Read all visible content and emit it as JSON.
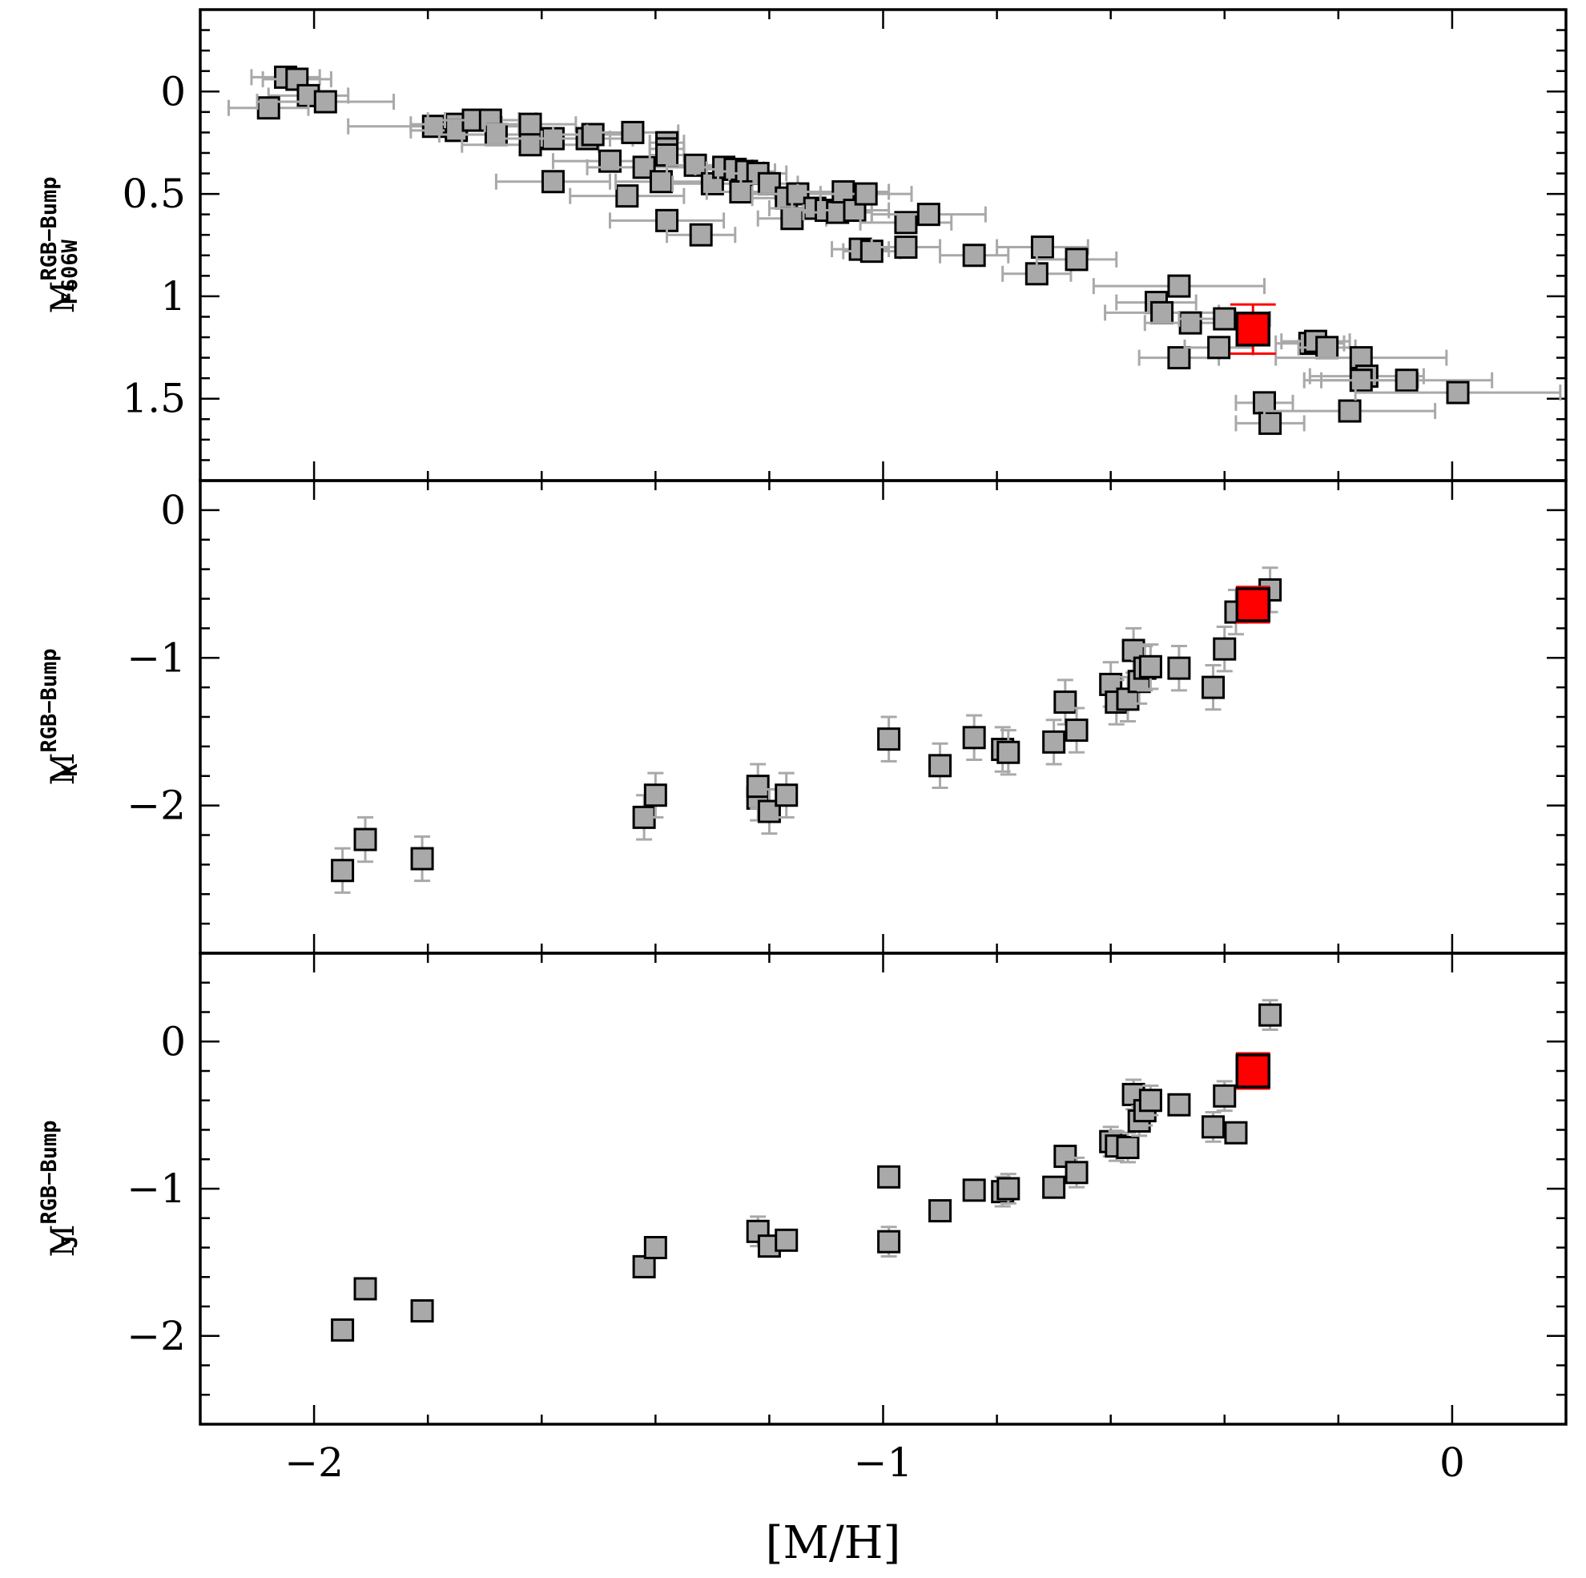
{
  "chart_data": {
    "type": "scatter",
    "x": {
      "label": "[M/H]",
      "range": [
        -2.2,
        0.2
      ],
      "major_ticks": [
        -2,
        -1,
        0
      ],
      "minor_step": 0.2,
      "tick_labels": [
        "−2",
        "−1",
        "0"
      ]
    },
    "panels": [
      {
        "id": "f606w",
        "ylabel": {
          "main": "M",
          "sup": "RGB−Bump",
          "sub": "F606W"
        },
        "yrange": [
          -0.4,
          1.9
        ],
        "major_ticks": [
          0,
          0.5,
          1,
          1.5
        ],
        "minor_step": 0.1,
        "tick_labels": [
          "0",
          "0.5",
          "1",
          "1.5"
        ],
        "xerr_default": 0.08,
        "points": [
          [
            -2.05,
            -0.07,
            0.06
          ],
          [
            -2.03,
            -0.06,
            0.06
          ],
          [
            -2.01,
            0.02,
            0.07
          ],
          [
            -2.08,
            0.08,
            0.07
          ],
          [
            -1.98,
            0.05,
            0.12
          ],
          [
            -1.79,
            0.17,
            0.15
          ],
          [
            -1.75,
            0.16,
            0.08
          ],
          [
            -1.75,
            0.19,
            0.08
          ],
          [
            -1.72,
            0.14,
            0.08
          ],
          [
            -1.69,
            0.14,
            0.08
          ],
          [
            -1.68,
            0.21,
            0.1
          ],
          [
            -1.62,
            0.16,
            0.08
          ],
          [
            -1.62,
            0.26,
            0.12
          ],
          [
            -1.58,
            0.23,
            0.1
          ],
          [
            -1.52,
            0.23,
            0.08
          ],
          [
            -1.51,
            0.21,
            0.07
          ],
          [
            -1.48,
            0.34,
            0.1
          ],
          [
            -1.44,
            0.2,
            0.08
          ],
          [
            -1.42,
            0.37,
            0.1
          ],
          [
            -1.45,
            0.51,
            0.1
          ],
          [
            -1.58,
            0.44,
            0.1
          ],
          [
            -1.39,
            0.44,
            0.08
          ],
          [
            -1.38,
            0.25,
            0.03
          ],
          [
            -1.38,
            0.28,
            0.03
          ],
          [
            -1.38,
            0.31,
            0.03
          ],
          [
            -1.38,
            0.63,
            0.1
          ],
          [
            -1.32,
            0.7,
            0.06
          ],
          [
            -1.33,
            0.36,
            0.05
          ],
          [
            -1.3,
            0.45,
            0.07
          ],
          [
            -1.28,
            0.37,
            0.05
          ],
          [
            -1.26,
            0.38,
            0.05
          ],
          [
            -1.24,
            0.39,
            0.05
          ],
          [
            -1.22,
            0.4,
            0.05
          ],
          [
            -1.25,
            0.49,
            0.06
          ],
          [
            -1.2,
            0.45,
            0.05
          ],
          [
            -1.17,
            0.52,
            0.06
          ],
          [
            -1.16,
            0.62,
            0.06
          ],
          [
            -1.15,
            0.5,
            0.08
          ],
          [
            -1.12,
            0.57,
            0.08
          ],
          [
            -1.1,
            0.58,
            0.06
          ],
          [
            -1.08,
            0.59,
            0.06
          ],
          [
            -1.07,
            0.49,
            0.08
          ],
          [
            -1.05,
            0.58,
            0.06
          ],
          [
            -1.03,
            0.5,
            0.08
          ],
          [
            -1.04,
            0.77,
            0.05
          ],
          [
            -1.02,
            0.78,
            0.05
          ],
          [
            -0.96,
            0.64,
            0.08
          ],
          [
            -0.92,
            0.6,
            0.1
          ],
          [
            -0.96,
            0.76,
            0.06
          ],
          [
            -0.84,
            0.8,
            0.06
          ],
          [
            -0.73,
            0.89,
            0.06
          ],
          [
            -0.72,
            0.76,
            0.08
          ],
          [
            -0.66,
            0.82,
            0.07
          ],
          [
            -0.52,
            1.03,
            0.07
          ],
          [
            -0.51,
            1.08,
            0.1
          ],
          [
            -0.48,
            0.95,
            0.15
          ],
          [
            -0.48,
            1.3,
            0.07
          ],
          [
            -0.46,
            1.13,
            0.08
          ],
          [
            -0.41,
            1.25,
            0.06
          ],
          [
            -0.4,
            1.11,
            0.08
          ],
          [
            -0.33,
            1.52,
            0.05
          ],
          [
            -0.32,
            1.62,
            0.06
          ],
          [
            -0.25,
            1.23,
            0.06
          ],
          [
            -0.24,
            1.22,
            0.06
          ],
          [
            -0.22,
            1.25,
            0.05
          ],
          [
            -0.18,
            1.56,
            0.15
          ],
          [
            -0.16,
            1.3,
            0.15
          ],
          [
            -0.15,
            1.39,
            0.1
          ],
          [
            -0.16,
            1.41,
            0.1
          ],
          [
            -0.08,
            1.41,
            0.15
          ],
          [
            0.01,
            1.47,
            0.18
          ]
        ],
        "highlight": {
          "x": -0.35,
          "y": 1.16,
          "yerr": 0.12,
          "xerr": 0.04
        }
      },
      {
        "id": "k",
        "ylabel": {
          "main": "M",
          "sup": "RGB−Bump",
          "sub": "K"
        },
        "yrange": [
          0.2,
          -3.0
        ],
        "major_ticks": [
          -2,
          -1,
          0
        ],
        "minor_step": 0.2,
        "tick_labels": [
          "−2",
          "−1",
          "0"
        ],
        "points": [
          [
            -1.95,
            -2.44,
            0.15
          ],
          [
            -1.91,
            -2.23,
            0.15
          ],
          [
            -1.81,
            -2.36,
            0.15
          ],
          [
            -1.42,
            -2.08,
            0.15
          ],
          [
            -1.4,
            -1.93,
            0.15
          ],
          [
            -1.22,
            -1.95,
            0.15
          ],
          [
            -1.22,
            -1.87,
            0.15
          ],
          [
            -1.2,
            -2.04,
            0.15
          ],
          [
            -1.17,
            -1.93,
            0.15
          ],
          [
            -0.99,
            -1.55,
            0.15
          ],
          [
            -0.9,
            -1.73,
            0.15
          ],
          [
            -0.84,
            -1.54,
            0.15
          ],
          [
            -0.79,
            -1.62,
            0.15
          ],
          [
            -0.78,
            -1.64,
            0.15
          ],
          [
            -0.7,
            -1.57,
            0.15
          ],
          [
            -0.68,
            -1.3,
            0.15
          ],
          [
            -0.66,
            -1.49,
            0.15
          ],
          [
            -0.6,
            -1.18,
            0.15
          ],
          [
            -0.59,
            -1.3,
            0.15
          ],
          [
            -0.57,
            -1.28,
            0.15
          ],
          [
            -0.56,
            -0.95,
            0.15
          ],
          [
            -0.55,
            -1.16,
            0.15
          ],
          [
            -0.54,
            -1.07,
            0.15
          ],
          [
            -0.53,
            -1.06,
            0.15
          ],
          [
            -0.48,
            -1.07,
            0.15
          ],
          [
            -0.42,
            -1.2,
            0.15
          ],
          [
            -0.4,
            -0.94,
            0.15
          ],
          [
            -0.38,
            -0.69,
            0.15
          ],
          [
            -0.32,
            -0.54,
            0.15
          ]
        ],
        "highlight": {
          "x": -0.35,
          "y": -0.64,
          "yerr": 0.12,
          "xerr": 0.03
        }
      },
      {
        "id": "j",
        "ylabel": {
          "main": "M",
          "sup": "RGB−Bump",
          "sub": "J"
        },
        "yrange": [
          0.6,
          -2.6
        ],
        "major_ticks": [
          -2,
          -1,
          0
        ],
        "minor_step": 0.2,
        "tick_labels": [
          "−2",
          "−1",
          "0"
        ],
        "points": [
          [
            -1.95,
            -1.96,
            0.04
          ],
          [
            -1.91,
            -1.68,
            0.04
          ],
          [
            -1.81,
            -1.83,
            0.04
          ],
          [
            -1.42,
            -1.53,
            0.04
          ],
          [
            -1.4,
            -1.4,
            0.04
          ],
          [
            -1.22,
            -1.29,
            0.1
          ],
          [
            -1.2,
            -1.39,
            0.05
          ],
          [
            -1.17,
            -1.35,
            0.05
          ],
          [
            -0.99,
            -1.36,
            0.1
          ],
          [
            -0.99,
            -0.92,
            0.05
          ],
          [
            -0.9,
            -1.15,
            0.05
          ],
          [
            -0.84,
            -1.01,
            0.05
          ],
          [
            -0.79,
            -1.02,
            0.1
          ],
          [
            -0.78,
            -1.0,
            0.1
          ],
          [
            -0.7,
            -0.99,
            0.05
          ],
          [
            -0.68,
            -0.78,
            0.05
          ],
          [
            -0.66,
            -0.89,
            0.1
          ],
          [
            -0.6,
            -0.68,
            0.1
          ],
          [
            -0.59,
            -0.71,
            0.1
          ],
          [
            -0.57,
            -0.72,
            0.1
          ],
          [
            -0.56,
            -0.36,
            0.1
          ],
          [
            -0.55,
            -0.54,
            0.1
          ],
          [
            -0.54,
            -0.47,
            0.1
          ],
          [
            -0.53,
            -0.4,
            0.1
          ],
          [
            -0.48,
            -0.43,
            0.04
          ],
          [
            -0.42,
            -0.58,
            0.1
          ],
          [
            -0.4,
            -0.37,
            0.1
          ],
          [
            -0.38,
            -0.62,
            0.05
          ],
          [
            -0.32,
            0.18,
            0.1
          ]
        ],
        "highlight": {
          "x": -0.35,
          "y": -0.2,
          "yerr": 0.12,
          "xerr": 0.03
        }
      }
    ]
  }
}
